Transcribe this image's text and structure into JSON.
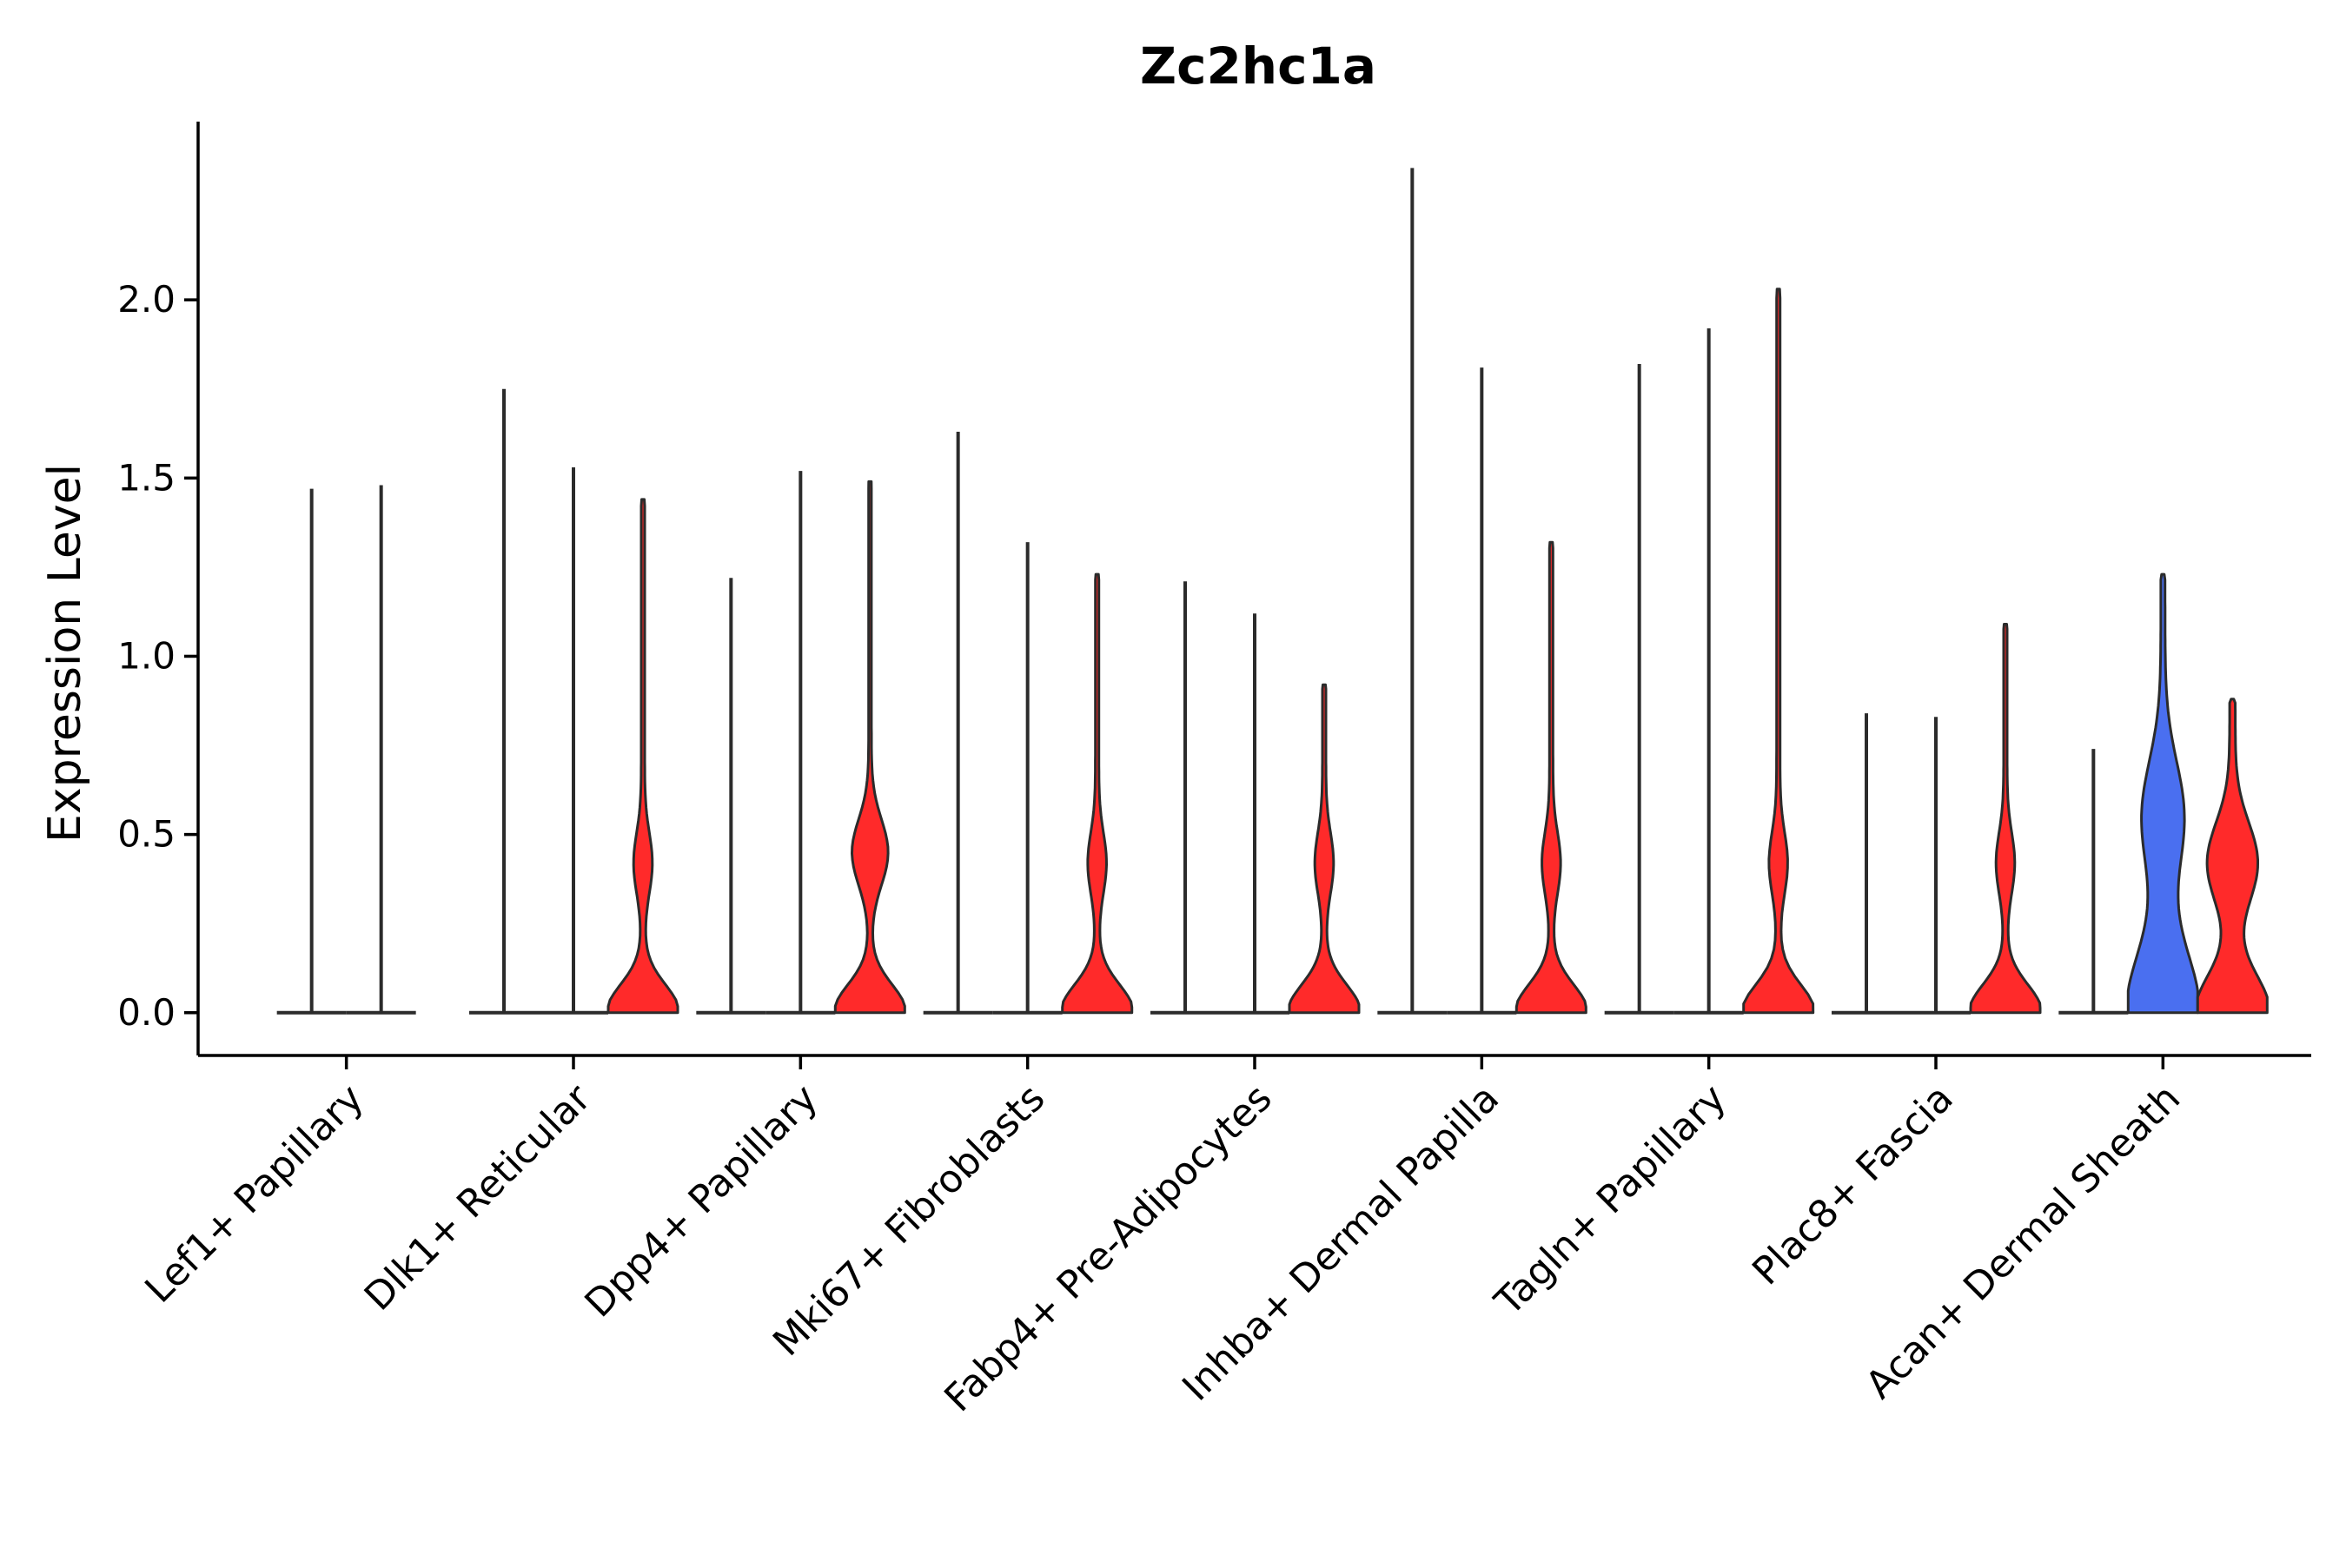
{
  "chart_data": {
    "type": "violin",
    "title": "Zc2hc1a",
    "xlabel": "",
    "ylabel": "Expression Level",
    "ylim": [
      -0.12,
      2.5
    ],
    "yticks": [
      0.0,
      0.5,
      1.0,
      1.5,
      2.0
    ],
    "ytick_labels": [
      "0.0",
      "0.5",
      "1.0",
      "1.5",
      "2.0"
    ],
    "grid": false,
    "legend": "none",
    "colors": {
      "red": "#ff2a2a",
      "blue": "#4a6ff0",
      "outline": "#2b2b2b",
      "axis": "#000000"
    },
    "categories": [
      "Lef1+ Papillary",
      "Dlk1+ Reticular",
      "Dpp4+ Papillary",
      "Mki67+ Fibroblasts",
      "Fabp4+ Pre-Adipocytes",
      "Inhba+ Dermal Papilla",
      "Tagln+ Papillary",
      "Plac8+ Fascia",
      "Acan+ Dermal Sheath"
    ],
    "groups": [
      {
        "category": "Lef1+ Papillary",
        "violins": [
          {
            "max": 1.47,
            "color": "none",
            "shape": "flat"
          },
          {
            "max": 1.48,
            "color": "none",
            "shape": "flat"
          }
        ]
      },
      {
        "category": "Dlk1+ Reticular",
        "violins": [
          {
            "max": 1.75,
            "color": "none",
            "shape": "flat"
          },
          {
            "max": 1.53,
            "color": "none",
            "shape": "flat"
          },
          {
            "max": 1.44,
            "color": "red",
            "shape": "base-mode"
          }
        ]
      },
      {
        "category": "Dpp4+ Papillary",
        "violins": [
          {
            "max": 1.22,
            "color": "none",
            "shape": "flat"
          },
          {
            "max": 1.52,
            "color": "none",
            "shape": "flat"
          },
          {
            "max": 1.49,
            "color": "red",
            "shape": "bimodal"
          }
        ]
      },
      {
        "category": "Mki67+ Fibroblasts",
        "violins": [
          {
            "max": 1.63,
            "color": "none",
            "shape": "flat"
          },
          {
            "max": 1.32,
            "color": "none",
            "shape": "flat"
          },
          {
            "max": 1.23,
            "color": "red",
            "shape": "base-mode"
          }
        ]
      },
      {
        "category": "Fabp4+ Pre-Adipocytes",
        "violins": [
          {
            "max": 1.21,
            "color": "none",
            "shape": "flat"
          },
          {
            "max": 1.12,
            "color": "none",
            "shape": "flat"
          },
          {
            "max": 0.92,
            "color": "red",
            "shape": "base-mode"
          }
        ]
      },
      {
        "category": "Inhba+ Dermal Papilla",
        "violins": [
          {
            "max": 2.37,
            "color": "none",
            "shape": "flat"
          },
          {
            "max": 1.81,
            "color": "none",
            "shape": "flat"
          },
          {
            "max": 1.32,
            "color": "red",
            "shape": "base-mode"
          }
        ]
      },
      {
        "category": "Tagln+ Papillary",
        "violins": [
          {
            "max": 1.82,
            "color": "none",
            "shape": "flat"
          },
          {
            "max": 1.92,
            "color": "none",
            "shape": "flat"
          },
          {
            "max": 2.03,
            "color": "red",
            "shape": "base-mode"
          }
        ]
      },
      {
        "category": "Plac8+ Fascia",
        "violins": [
          {
            "max": 0.84,
            "color": "none",
            "shape": "flat"
          },
          {
            "max": 0.83,
            "color": "none",
            "shape": "flat"
          },
          {
            "max": 1.09,
            "color": "red",
            "shape": "base-mode"
          }
        ]
      },
      {
        "category": "Acan+ Dermal Sheath",
        "violins": [
          {
            "max": 0.74,
            "color": "none",
            "shape": "flat"
          },
          {
            "max": 1.23,
            "color": "blue",
            "shape": "wide"
          },
          {
            "max": 0.88,
            "color": "red",
            "shape": "wide-bimodal"
          }
        ]
      }
    ]
  }
}
